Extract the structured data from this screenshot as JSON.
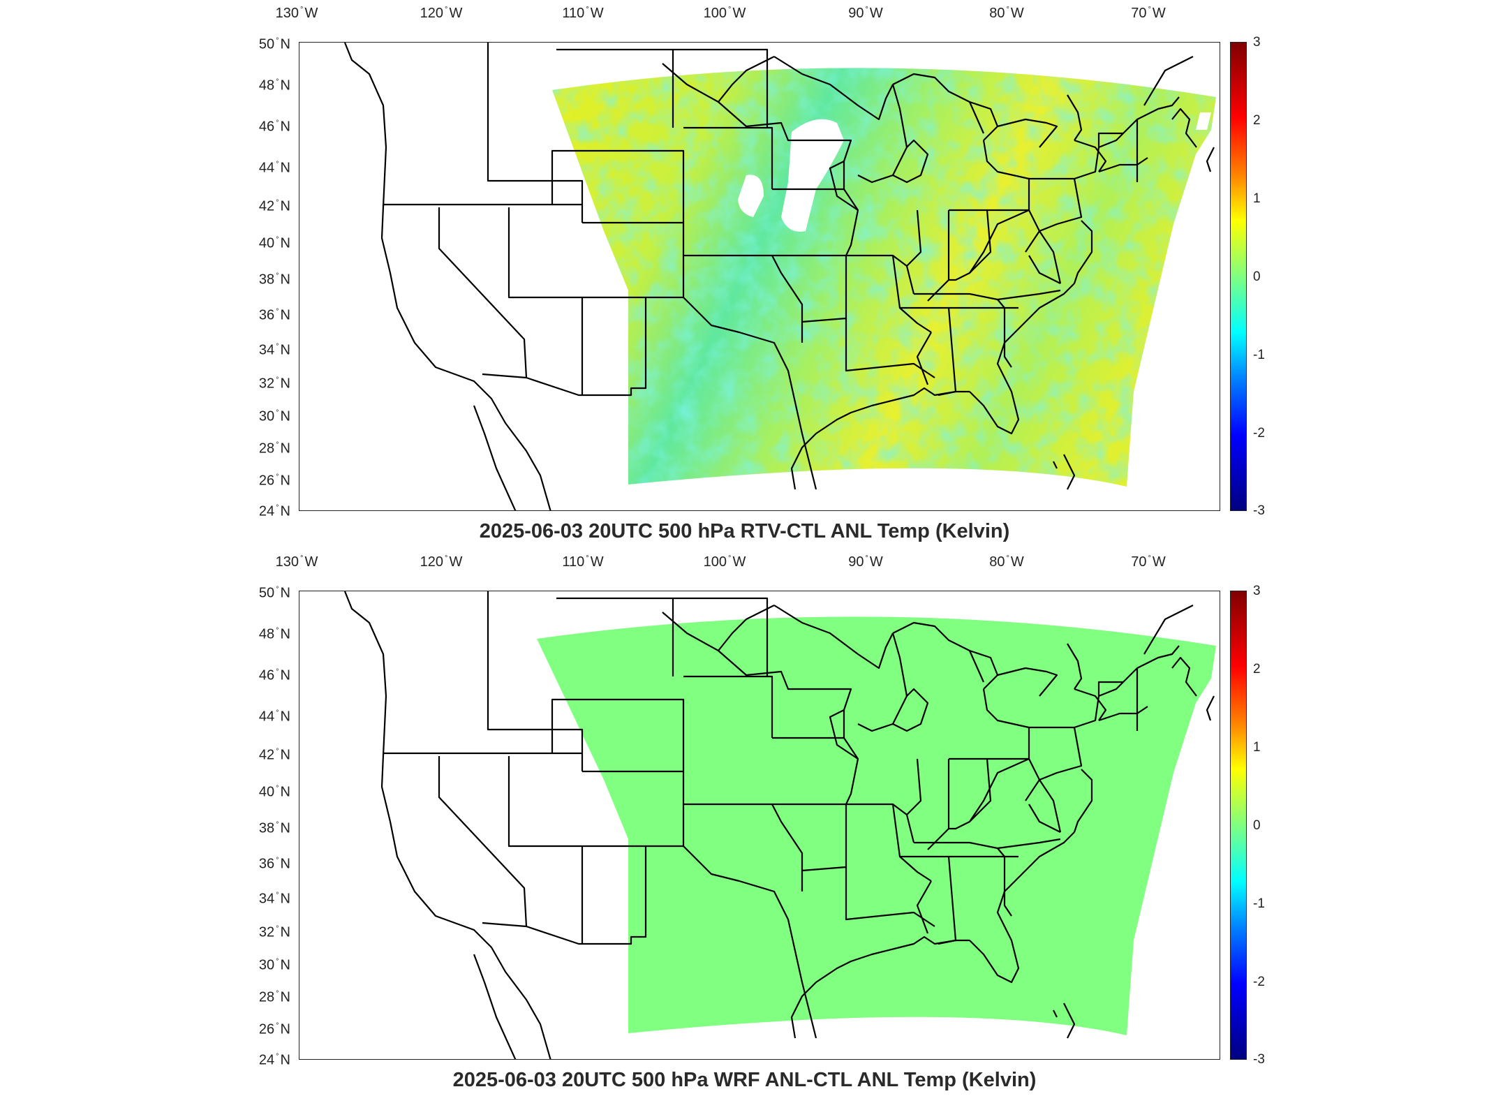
{
  "panels": [
    {
      "title": "2025-06-03 20UTC 500 hPa RTV-CTL ANL Temp (Kelvin)",
      "field": "difference-noisy",
      "colorbar_ticks": [
        "3",
        "2",
        "1",
        "0",
        "-1",
        "-2",
        "-3"
      ]
    },
    {
      "title": "2025-06-03 20UTC 500 hPa WRF ANL-CTL ANL Temp (Kelvin)",
      "field": "difference-zero",
      "colorbar_ticks": [
        "3",
        "2",
        "1",
        "0",
        "-1",
        "-2",
        "-3"
      ]
    }
  ],
  "lon_labels": [
    {
      "deg": "130",
      "hemi": "W"
    },
    {
      "deg": "120",
      "hemi": "W"
    },
    {
      "deg": "110",
      "hemi": "W"
    },
    {
      "deg": "100",
      "hemi": "W"
    },
    {
      "deg": "90",
      "hemi": "W"
    },
    {
      "deg": "80",
      "hemi": "W"
    },
    {
      "deg": "70",
      "hemi": "W"
    }
  ],
  "lat_labels": [
    {
      "deg": "50",
      "hemi": "N"
    },
    {
      "deg": "48",
      "hemi": "N"
    },
    {
      "deg": "46",
      "hemi": "N"
    },
    {
      "deg": "44",
      "hemi": "N"
    },
    {
      "deg": "42",
      "hemi": "N"
    },
    {
      "deg": "40",
      "hemi": "N"
    },
    {
      "deg": "38",
      "hemi": "N"
    },
    {
      "deg": "36",
      "hemi": "N"
    },
    {
      "deg": "34",
      "hemi": "N"
    },
    {
      "deg": "32",
      "hemi": "N"
    },
    {
      "deg": "30",
      "hemi": "N"
    },
    {
      "deg": "28",
      "hemi": "N"
    },
    {
      "deg": "26",
      "hemi": "N"
    },
    {
      "deg": "24",
      "hemi": "N"
    }
  ],
  "colors": {
    "zero_anomaly": "#80ff80",
    "warm_anomaly": "#e8f020",
    "cool_anomaly": "#40e8c8",
    "borders": "#000000"
  },
  "colorbar": {
    "min": -3,
    "max": 3,
    "colormap": "jet"
  }
}
